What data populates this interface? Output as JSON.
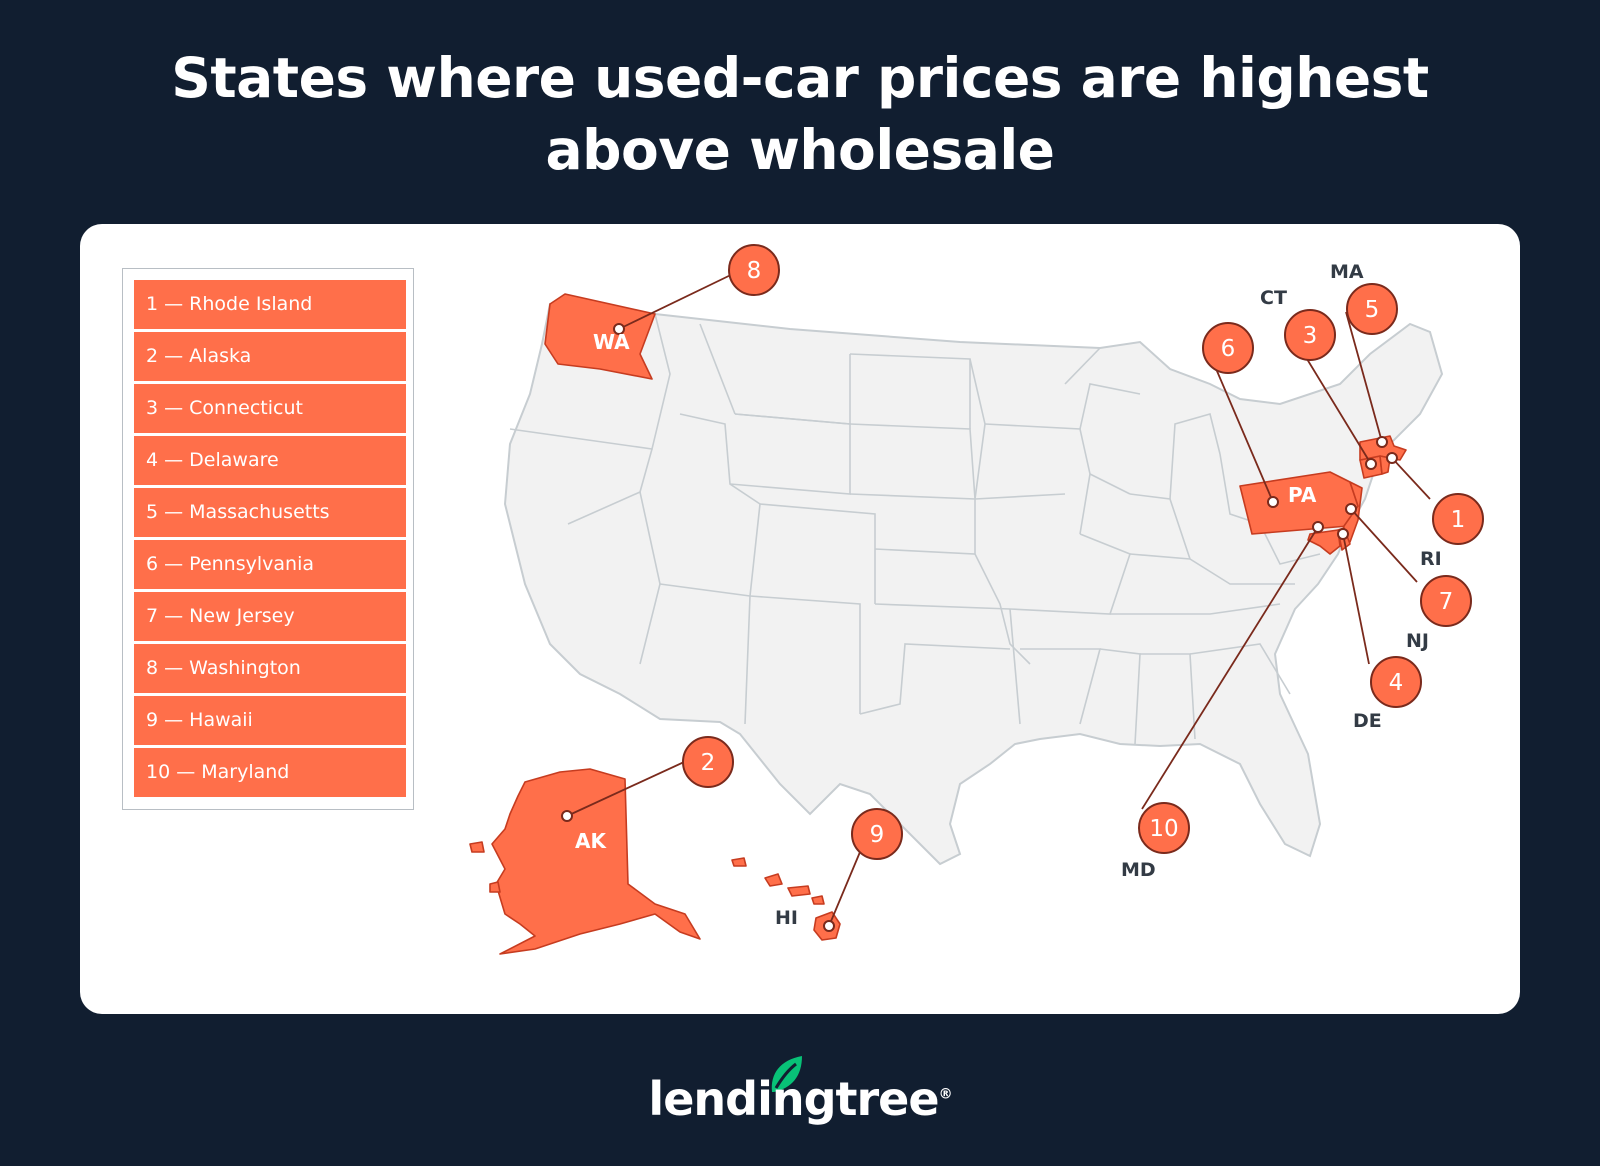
{
  "title": {
    "line1": "States where used-car prices are highest",
    "line2": "above wholesale"
  },
  "legend": {
    "items": [
      {
        "rank": 1,
        "label": "1 — Rhode Island"
      },
      {
        "rank": 2,
        "label": "2 — Alaska"
      },
      {
        "rank": 3,
        "label": "3 — Connecticut"
      },
      {
        "rank": 4,
        "label": "4 — Delaware"
      },
      {
        "rank": 5,
        "label": "5 — Massachusetts"
      },
      {
        "rank": 6,
        "label": "6 — Pennsylvania"
      },
      {
        "rank": 7,
        "label": "7 — New Jersey"
      },
      {
        "rank": 8,
        "label": "8 — Washington"
      },
      {
        "rank": 9,
        "label": "9 — Hawaii"
      },
      {
        "rank": 10,
        "label": "10 — Maryland"
      }
    ]
  },
  "map": {
    "highlight_color": "#ff6f4a",
    "base_color": "#f2f2f2",
    "border_color": "#c7cdd1",
    "states": [
      {
        "rank": "1",
        "abbr": "RI"
      },
      {
        "rank": "2",
        "abbr": "AK"
      },
      {
        "rank": "3",
        "abbr": "CT"
      },
      {
        "rank": "4",
        "abbr": "DE"
      },
      {
        "rank": "5",
        "abbr": "MA"
      },
      {
        "rank": "6",
        "abbr": "PA"
      },
      {
        "rank": "7",
        "abbr": "NJ"
      },
      {
        "rank": "8",
        "abbr": "WA"
      },
      {
        "rank": "9",
        "abbr": "HI"
      },
      {
        "rank": "10",
        "abbr": "MD"
      }
    ]
  },
  "footer": {
    "logo_text": "lendingtree",
    "logo_mark": "®",
    "logo_color": "#08c177",
    "background": "#111e30"
  }
}
